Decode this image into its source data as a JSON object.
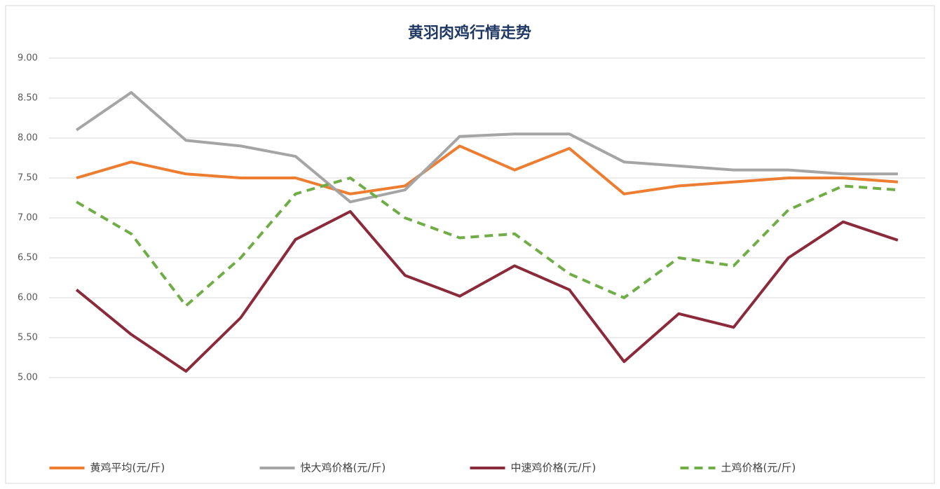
{
  "chart_data": {
    "type": "line",
    "title": "黄羽肉鸡行情走势",
    "categories": [
      null,
      null,
      null,
      null,
      null,
      null,
      null,
      null,
      null,
      null,
      null,
      null,
      null,
      null,
      null,
      null
    ],
    "series": [
      {
        "name": "黄鸡平均(元/斤)",
        "color": "#ed7d31",
        "values": [
          7.5,
          7.7,
          7.55,
          7.5,
          7.5,
          7.3,
          7.4,
          7.9,
          7.6,
          7.87,
          7.3,
          7.4,
          7.45,
          7.5,
          7.5,
          7.45
        ]
      },
      {
        "name": "快大鸡价格(元/斤)",
        "color": "#a5a5a5",
        "values": [
          8.1,
          8.57,
          7.97,
          7.9,
          7.77,
          7.2,
          7.35,
          8.02,
          8.05,
          8.05,
          7.7,
          7.65,
          7.6,
          7.6,
          7.55,
          7.55
        ]
      },
      {
        "name": "中速鸡价格(元/斤)",
        "color": "#8b2a3a",
        "values": [
          6.1,
          5.54,
          5.08,
          5.75,
          6.73,
          7.08,
          6.28,
          6.02,
          6.4,
          6.1,
          5.2,
          5.8,
          5.63,
          6.5,
          6.95,
          6.72
        ]
      },
      {
        "name": "土鸡价格(元/斤)",
        "color": "#70ad47",
        "dashed": true,
        "values": [
          7.2,
          6.8,
          5.9,
          6.5,
          7.3,
          7.5,
          7.0,
          6.75,
          6.8,
          6.3,
          6.0,
          6.5,
          6.4,
          7.1,
          7.4,
          7.35
        ]
      }
    ],
    "ylim": [
      5,
      9
    ],
    "yticks": [
      {
        "value": 5,
        "label": "5.00"
      },
      {
        "value": 5.5,
        "label": "5.50"
      },
      {
        "value": 6,
        "label": "6.00"
      },
      {
        "value": 6.5,
        "label": "6.50"
      },
      {
        "value": 7,
        "label": "7.00"
      },
      {
        "value": 7.5,
        "label": "7.50"
      },
      {
        "value": 8,
        "label": "8.00"
      },
      {
        "value": 8.5,
        "label": "8.50"
      },
      {
        "value": 9,
        "label": "9.00"
      }
    ],
    "grid": true
  }
}
